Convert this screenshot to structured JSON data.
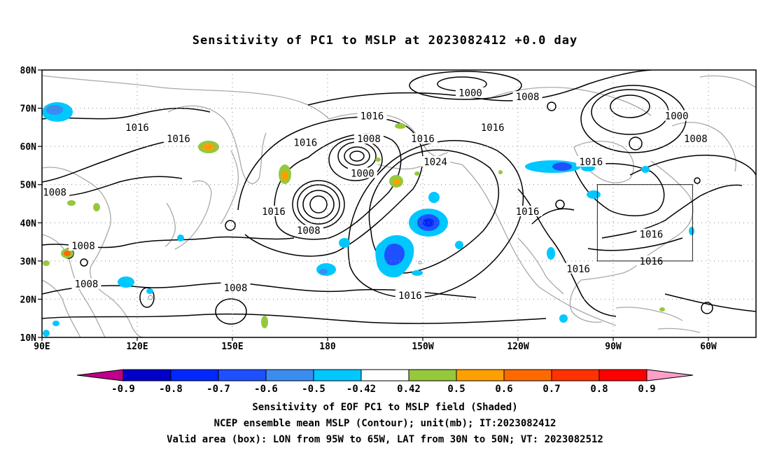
{
  "title": "Sensitivity of PC1 to MSLP at 2023082412 +0.0 day",
  "map": {
    "lat_labels": [
      "80N",
      "70N",
      "60N",
      "50N",
      "40N",
      "30N",
      "20N",
      "10N"
    ],
    "lat_values": [
      80,
      70,
      60,
      50,
      40,
      30,
      20,
      10
    ],
    "lon_labels": [
      "90E",
      "120E",
      "150E",
      "180",
      "150W",
      "120W",
      "90W",
      "60W"
    ],
    "lon_values": [
      90,
      120,
      150,
      180,
      210,
      240,
      270,
      300
    ],
    "extent": {
      "lon_min": 90,
      "lon_max": 315,
      "lat_min": 10,
      "lat_max": 80
    },
    "valid_box": {
      "lon_min": 265,
      "lon_max": 295,
      "lat_min": 30,
      "lat_max": 50
    },
    "contour_labels": [
      {
        "text": "1000",
        "lon": 225,
        "lat": 74
      },
      {
        "text": "1008",
        "lon": 243,
        "lat": 73
      },
      {
        "text": "1016",
        "lon": 194,
        "lat": 68
      },
      {
        "text": "1000",
        "lon": 290,
        "lat": 68
      },
      {
        "text": "1016",
        "lon": 120,
        "lat": 65
      },
      {
        "text": "1016",
        "lon": 133,
        "lat": 62
      },
      {
        "text": "1016",
        "lon": 232,
        "lat": 65
      },
      {
        "text": "1008",
        "lon": 296,
        "lat": 62
      },
      {
        "text": "1008",
        "lon": 193,
        "lat": 62
      },
      {
        "text": "1016",
        "lon": 210,
        "lat": 62
      },
      {
        "text": "1016",
        "lon": 173,
        "lat": 61
      },
      {
        "text": "1016",
        "lon": 263,
        "lat": 56
      },
      {
        "text": "1024",
        "lon": 214,
        "lat": 56
      },
      {
        "text": "1000",
        "lon": 191,
        "lat": 53
      },
      {
        "text": "1008",
        "lon": 94,
        "lat": 48
      },
      {
        "text": "1016",
        "lon": 163,
        "lat": 43
      },
      {
        "text": "1016",
        "lon": 243,
        "lat": 43
      },
      {
        "text": "1008",
        "lon": 174,
        "lat": 38
      },
      {
        "text": "1016",
        "lon": 282,
        "lat": 37
      },
      {
        "text": "1008",
        "lon": 103,
        "lat": 34
      },
      {
        "text": "1016",
        "lon": 259,
        "lat": 28
      },
      {
        "text": "1016",
        "lon": 282,
        "lat": 30
      },
      {
        "text": "1008",
        "lon": 104,
        "lat": 24
      },
      {
        "text": "1008",
        "lon": 151,
        "lat": 23
      },
      {
        "text": "1016",
        "lon": 206,
        "lat": 21
      }
    ]
  },
  "colorbar": {
    "labels": [
      "-0.9",
      "-0.8",
      "-0.7",
      "-0.6",
      "-0.5",
      "-0.42",
      "0.42",
      "0.5",
      "0.6",
      "0.7",
      "0.8",
      "0.9"
    ],
    "colors": [
      "#c0008c",
      "#0000c8",
      "#0028ff",
      "#1e50ff",
      "#3a8cf0",
      "#00c8ff",
      "#ffffff",
      "#96c83c",
      "#ffa000",
      "#ff6a00",
      "#ff3200",
      "#ff0000",
      "#ff9ec8"
    ]
  },
  "captions": [
    "Sensitivity of EOF PC1 to MSLP field (Shaded)",
    "NCEP ensemble mean MSLP (Contour); unit(mb); IT:2023082412",
    "Valid area (box): LON from 95W to 65W, LAT from 30N to 50N; VT: 2023082512"
  ]
}
